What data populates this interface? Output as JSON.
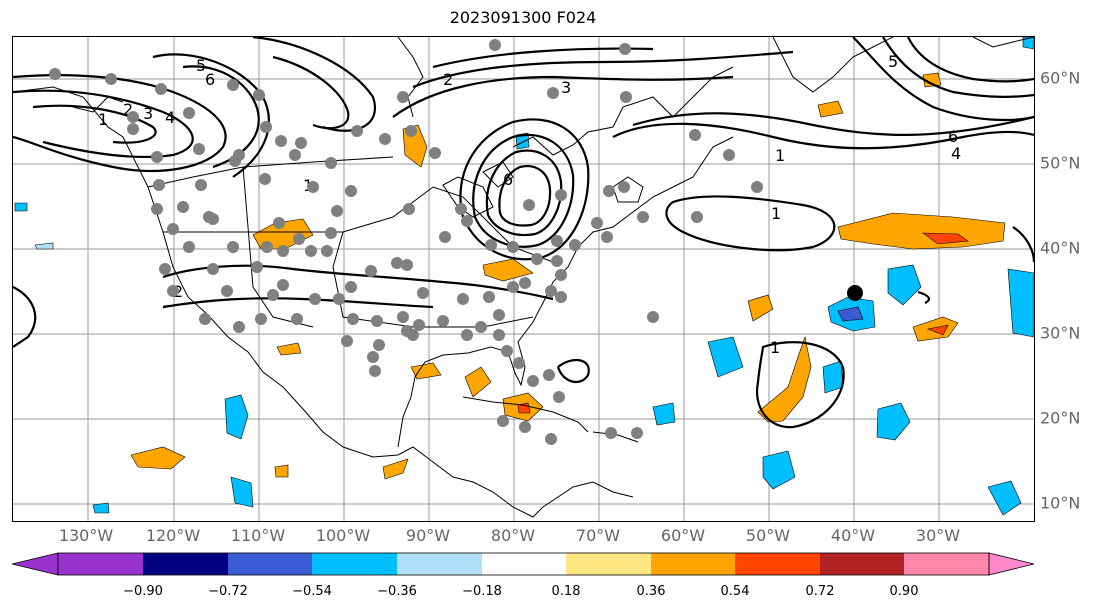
{
  "title": "2023091300 F024",
  "lon_labels": [
    {
      "text": "130°W"
    },
    {
      "text": "120°W"
    },
    {
      "text": "110°W"
    },
    {
      "text": "100°W"
    },
    {
      "text": "90°W"
    },
    {
      "text": "80°W"
    },
    {
      "text": "70°W"
    },
    {
      "text": "60°W"
    },
    {
      "text": "50°W"
    },
    {
      "text": "40°W"
    },
    {
      "text": "30°W"
    }
  ],
  "lat_labels": [
    {
      "text": "60°N"
    },
    {
      "text": "50°N"
    },
    {
      "text": "40°N"
    },
    {
      "text": "30°N"
    },
    {
      "text": "20°N"
    },
    {
      "text": "10°N"
    }
  ],
  "colorbar": {
    "labels": [
      "−0.90",
      "−0.72",
      "−0.54",
      "−0.36",
      "−0.18",
      "0.18",
      "0.36",
      "0.54",
      "0.72",
      "0.90"
    ],
    "colors": [
      "#9932cc",
      "#000080",
      "#3b5bd6",
      "#00bfff",
      "#b0e0f8",
      "#ffffff",
      "#ffe680",
      "#ffa500",
      "#ff4500",
      "#b22222",
      "#ff88aa",
      "#ff88cc"
    ]
  },
  "contour_labels": [
    "1",
    "2",
    "3",
    "4",
    "5",
    "6",
    "1",
    "2",
    "6",
    "1",
    "4",
    "5",
    "6",
    "1",
    "1",
    "2",
    "3"
  ]
}
